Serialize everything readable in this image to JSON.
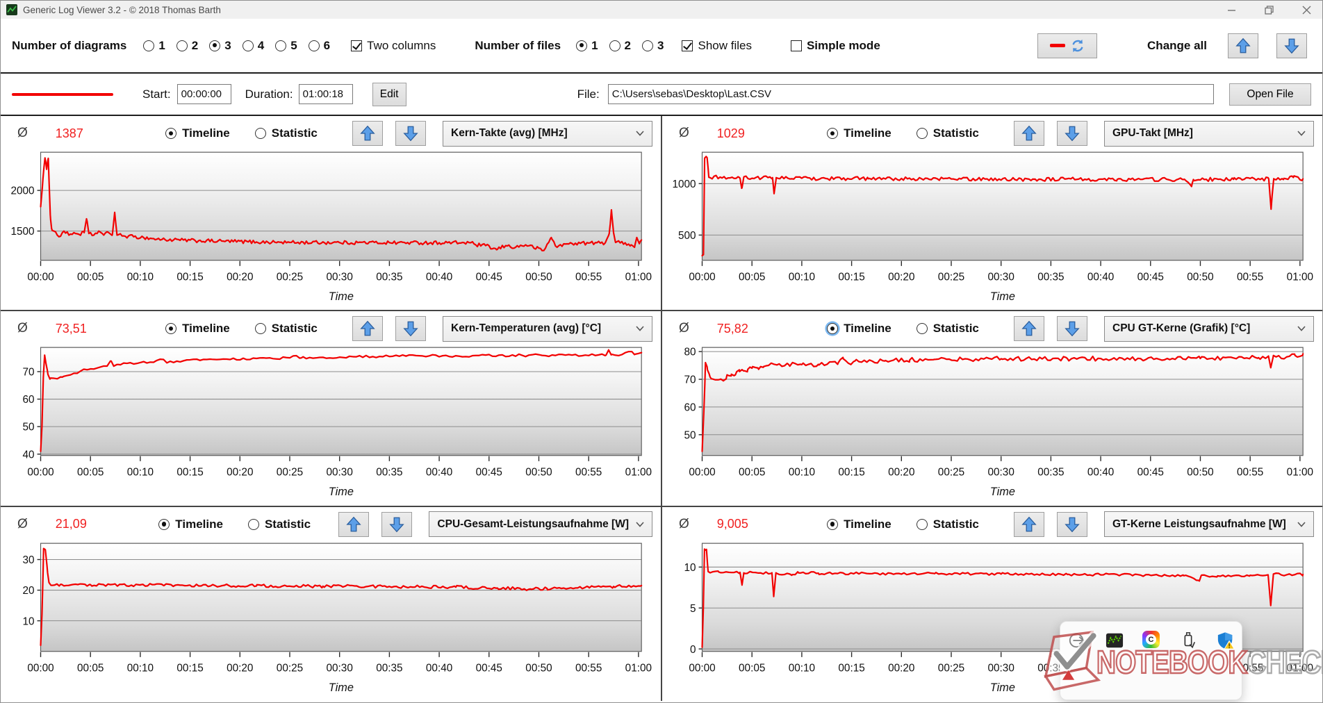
{
  "window": {
    "title": "Generic Log Viewer 3.2 - © 2018 Thomas Barth"
  },
  "toolbar": {
    "diagrams_label": "Number of diagrams",
    "diagram_options": [
      "1",
      "2",
      "3",
      "4",
      "5",
      "6"
    ],
    "diagrams_selected": "3",
    "two_columns_label": "Two columns",
    "two_columns_checked": true,
    "files_label": "Number of files",
    "file_options": [
      "1",
      "2",
      "3"
    ],
    "files_selected": "1",
    "show_files_label": "Show files",
    "show_files_checked": true,
    "simple_mode_label": "Simple mode",
    "simple_mode_checked": false,
    "change_all_label": "Change all"
  },
  "file_row": {
    "legend_color": "#f20000",
    "start_label": "Start:",
    "start_value": "00:00:00",
    "duration_label": "Duration:",
    "duration_value": "01:00:18",
    "edit_label": "Edit",
    "file_label": "File:",
    "file_path": "C:\\Users\\sebas\\Desktop\\Last.CSV",
    "open_file_label": "Open File"
  },
  "chart_common": {
    "avg_symbol": "Ø",
    "avg_color": "#f02020",
    "timeline_label": "Timeline",
    "statistic_label": "Statistic",
    "mode_selected": "Timeline",
    "time_axis_label": "Time",
    "duration_seconds": 3618,
    "x_tick_interval_seconds": 300,
    "x_ticks": [
      "00:00",
      "00:05",
      "00:10",
      "00:15",
      "00:20",
      "00:25",
      "00:30",
      "00:35",
      "00:40",
      "00:45",
      "00:50",
      "00:55",
      "01:00"
    ],
    "line_color": "#f20000",
    "grid_on": true
  },
  "chart_data": [
    {
      "type": "line",
      "metric": "Kern-Takte (avg) [MHz]",
      "average_display": "1387",
      "ylim": [
        1140,
        2470
      ],
      "y_gridlines": [
        1500,
        2000
      ],
      "focused": false,
      "noise": 22,
      "noise_period_s": 10,
      "envelope": [
        [
          0,
          1800
        ],
        [
          14,
          2150
        ],
        [
          26,
          2400
        ],
        [
          36,
          2260
        ],
        [
          46,
          2395
        ],
        [
          58,
          1700
        ],
        [
          66,
          1530
        ],
        [
          80,
          1500
        ],
        [
          110,
          1430
        ],
        [
          140,
          1500
        ],
        [
          170,
          1450
        ],
        [
          200,
          1480
        ],
        [
          230,
          1460
        ],
        [
          262,
          1480
        ],
        [
          276,
          1650
        ],
        [
          290,
          1470
        ],
        [
          320,
          1450
        ],
        [
          350,
          1500
        ],
        [
          380,
          1450
        ],
        [
          410,
          1480
        ],
        [
          432,
          1460
        ],
        [
          446,
          1730
        ],
        [
          460,
          1450
        ],
        [
          500,
          1440
        ],
        [
          560,
          1430
        ],
        [
          620,
          1420
        ],
        [
          700,
          1400
        ],
        [
          800,
          1390
        ],
        [
          950,
          1380
        ],
        [
          1100,
          1375
        ],
        [
          1300,
          1365
        ],
        [
          1500,
          1360
        ],
        [
          1800,
          1358
        ],
        [
          2100,
          1357
        ],
        [
          2400,
          1356
        ],
        [
          2590,
          1356
        ],
        [
          2620,
          1330
        ],
        [
          2680,
          1320
        ],
        [
          2745,
          1270
        ],
        [
          2800,
          1320
        ],
        [
          2860,
          1300
        ],
        [
          2920,
          1330
        ],
        [
          2985,
          1290
        ],
        [
          3030,
          1260
        ],
        [
          3075,
          1420
        ],
        [
          3110,
          1300
        ],
        [
          3160,
          1340
        ],
        [
          3220,
          1350
        ],
        [
          3300,
          1352
        ],
        [
          3400,
          1354
        ],
        [
          3424,
          1470
        ],
        [
          3437,
          1760
        ],
        [
          3450,
          1480
        ],
        [
          3462,
          1360
        ],
        [
          3520,
          1355
        ],
        [
          3556,
          1330
        ],
        [
          3576,
          1300
        ],
        [
          3590,
          1420
        ],
        [
          3605,
          1345
        ],
        [
          3618,
          1390
        ]
      ]
    },
    {
      "type": "line",
      "metric": "GPU-Takt [MHz]",
      "average_display": "1029",
      "ylim": [
        255,
        1305
      ],
      "y_gridlines": [
        500,
        1000
      ],
      "focused": false,
      "noise": 18,
      "noise_period_s": 12,
      "envelope": [
        [
          0,
          300
        ],
        [
          8,
          310
        ],
        [
          15,
          1248
        ],
        [
          30,
          1252
        ],
        [
          40,
          1062
        ],
        [
          225,
          1058
        ],
        [
          238,
          955
        ],
        [
          250,
          1058
        ],
        [
          424,
          1058
        ],
        [
          433,
          902
        ],
        [
          446,
          1058
        ],
        [
          600,
          1052
        ],
        [
          1000,
          1048
        ],
        [
          1500,
          1045
        ],
        [
          2000,
          1042
        ],
        [
          2500,
          1042
        ],
        [
          2900,
          1040
        ],
        [
          2947,
          972
        ],
        [
          2958,
          1040
        ],
        [
          3200,
          1042
        ],
        [
          3412,
          1046
        ],
        [
          3426,
          752
        ],
        [
          3442,
          1048
        ],
        [
          3500,
          1040
        ],
        [
          3560,
          1060
        ],
        [
          3618,
          1046
        ]
      ]
    },
    {
      "type": "line",
      "metric": "Kern-Temperaturen (avg) [°C]",
      "average_display": "73,51",
      "ylim": [
        39.5,
        78.8
      ],
      "y_gridlines": [
        40,
        50,
        60,
        70
      ],
      "focused": false,
      "noise": 0.45,
      "noise_period_s": 20,
      "envelope": [
        [
          0,
          41
        ],
        [
          8,
          50
        ],
        [
          16,
          68
        ],
        [
          24,
          76
        ],
        [
          32,
          73
        ],
        [
          44,
          69
        ],
        [
          56,
          67.3
        ],
        [
          100,
          67.4
        ],
        [
          130,
          68
        ],
        [
          160,
          68.6
        ],
        [
          200,
          69.4
        ],
        [
          240,
          70.2
        ],
        [
          290,
          70.8
        ],
        [
          340,
          71.3
        ],
        [
          400,
          72
        ],
        [
          425,
          73.8
        ],
        [
          440,
          72
        ],
        [
          470,
          72.6
        ],
        [
          520,
          73
        ],
        [
          600,
          73.3
        ],
        [
          680,
          73.4
        ],
        [
          740,
          74.4
        ],
        [
          760,
          73.2
        ],
        [
          820,
          73.8
        ],
        [
          900,
          74.3
        ],
        [
          1000,
          74.4
        ],
        [
          1150,
          74.6
        ],
        [
          1300,
          74.8
        ],
        [
          1500,
          75
        ],
        [
          1540,
          75.8
        ],
        [
          1570,
          75
        ],
        [
          1700,
          75.2
        ],
        [
          1900,
          75.4
        ],
        [
          2100,
          75.5
        ],
        [
          2300,
          75.7
        ],
        [
          2600,
          75.8
        ],
        [
          2900,
          75.9
        ],
        [
          3200,
          76
        ],
        [
          3405,
          76
        ],
        [
          3420,
          77.9
        ],
        [
          3436,
          76.1
        ],
        [
          3500,
          76.2
        ],
        [
          3556,
          77.3
        ],
        [
          3576,
          76.2
        ],
        [
          3600,
          76.6
        ],
        [
          3618,
          76.9
        ]
      ]
    },
    {
      "type": "line",
      "metric": "CPU GT-Kerne (Grafik) [°C]",
      "average_display": "75,82",
      "ylim": [
        42.5,
        81.5
      ],
      "y_gridlines": [
        50,
        60,
        70,
        80
      ],
      "focused": true,
      "noise": 0.8,
      "noise_period_s": 16,
      "envelope": [
        [
          0,
          44
        ],
        [
          10,
          58
        ],
        [
          20,
          76
        ],
        [
          30,
          74.5
        ],
        [
          42,
          72
        ],
        [
          55,
          70.2
        ],
        [
          80,
          69.8
        ],
        [
          110,
          70
        ],
        [
          135,
          69.8
        ],
        [
          150,
          71.6
        ],
        [
          175,
          71.2
        ],
        [
          200,
          71.6
        ],
        [
          225,
          72.8
        ],
        [
          250,
          73
        ],
        [
          275,
          73.6
        ],
        [
          300,
          74
        ],
        [
          340,
          73.6
        ],
        [
          370,
          74.6
        ],
        [
          400,
          75
        ],
        [
          450,
          75.2
        ],
        [
          520,
          75.4
        ],
        [
          600,
          75.3
        ],
        [
          700,
          75.4
        ],
        [
          820,
          76
        ],
        [
          850,
          77.4
        ],
        [
          880,
          75.8
        ],
        [
          920,
          76.6
        ],
        [
          960,
          76.2
        ],
        [
          1000,
          76.6
        ],
        [
          1100,
          76.6
        ],
        [
          1250,
          77
        ],
        [
          1400,
          77.2
        ],
        [
          1600,
          77.3
        ],
        [
          1800,
          77.4
        ],
        [
          2000,
          77.3
        ],
        [
          2200,
          77.4
        ],
        [
          2400,
          77.5
        ],
        [
          2600,
          77.4
        ],
        [
          2800,
          77.5
        ],
        [
          3000,
          77.5
        ],
        [
          3200,
          77.7
        ],
        [
          3350,
          77.8
        ],
        [
          3410,
          78.4
        ],
        [
          3424,
          74.2
        ],
        [
          3438,
          77.9
        ],
        [
          3460,
          78.2
        ],
        [
          3520,
          78.1
        ],
        [
          3570,
          78.6
        ],
        [
          3600,
          78.3
        ],
        [
          3618,
          79.2
        ]
      ]
    },
    {
      "type": "line",
      "metric": "CPU-Gesamt-Leistungsaufnahme [W]",
      "average_display": "21,09",
      "ylim": [
        0,
        35.3
      ],
      "y_gridlines": [
        10,
        20,
        30
      ],
      "focused": false,
      "noise": 0.5,
      "noise_period_s": 14,
      "envelope": [
        [
          0,
          2
        ],
        [
          8,
          12
        ],
        [
          18,
          33.6
        ],
        [
          28,
          33.2
        ],
        [
          38,
          28
        ],
        [
          50,
          22.5
        ],
        [
          62,
          21.6
        ],
        [
          120,
          21.9
        ],
        [
          300,
          21.8
        ],
        [
          600,
          21.7
        ],
        [
          900,
          21.6
        ],
        [
          1300,
          21.4
        ],
        [
          1700,
          21.3
        ],
        [
          2100,
          21.2
        ],
        [
          2500,
          21.0
        ],
        [
          2750,
          20.7
        ],
        [
          2950,
          20.4
        ],
        [
          3050,
          20.5
        ],
        [
          3150,
          20.7
        ],
        [
          3300,
          21.0
        ],
        [
          3450,
          21.2
        ],
        [
          3618,
          21.5
        ]
      ]
    },
    {
      "type": "line",
      "metric": "GT-Kerne Leistungsaufnahme [W]",
      "average_display": "9,005",
      "ylim": [
        -0.3,
        12.9
      ],
      "y_gridlines": [
        0,
        5,
        10
      ],
      "focused": false,
      "noise": 0.15,
      "noise_period_s": 16,
      "envelope": [
        [
          0,
          0.2
        ],
        [
          7,
          5
        ],
        [
          14,
          12.2
        ],
        [
          26,
          12.15
        ],
        [
          36,
          9.45
        ],
        [
          100,
          9.4
        ],
        [
          228,
          9.35
        ],
        [
          240,
          7.8
        ],
        [
          251,
          9.3
        ],
        [
          420,
          9.3
        ],
        [
          431,
          6.4
        ],
        [
          444,
          9.3
        ],
        [
          540,
          9.0
        ],
        [
          580,
          9.3
        ],
        [
          700,
          9.25
        ],
        [
          1000,
          9.2
        ],
        [
          1400,
          9.2
        ],
        [
          1800,
          9.15
        ],
        [
          2200,
          9.1
        ],
        [
          2600,
          9.05
        ],
        [
          2900,
          8.95
        ],
        [
          2994,
          8.3
        ],
        [
          3005,
          8.95
        ],
        [
          3100,
          8.8
        ],
        [
          3200,
          8.95
        ],
        [
          3300,
          9.0
        ],
        [
          3408,
          9.05
        ],
        [
          3424,
          5.3
        ],
        [
          3440,
          9.15
        ],
        [
          3520,
          9.05
        ],
        [
          3618,
          9.1
        ]
      ]
    }
  ],
  "tray_popup": {
    "icons": [
      "arrow-circle",
      "gpu-monitor",
      "color-profile",
      "usb-drive",
      "defender-shield"
    ]
  },
  "watermark": {
    "brand_red": "NOTEBOOK",
    "brand_gray": "CHECK"
  }
}
